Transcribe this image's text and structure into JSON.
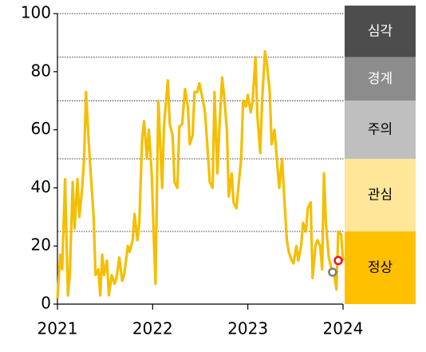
{
  "chart_data": {
    "type": "line",
    "x": [
      2021.0,
      2021.03,
      2021.05,
      2021.08,
      2021.11,
      2021.13,
      2021.16,
      2021.18,
      2021.21,
      2021.23,
      2021.26,
      2021.28,
      2021.3,
      2021.33,
      2021.35,
      2021.38,
      2021.4,
      2021.43,
      2021.45,
      2021.47,
      2021.49,
      2021.52,
      2021.54,
      2021.57,
      2021.6,
      2021.62,
      2021.65,
      2021.68,
      2021.7,
      2021.74,
      2021.76,
      2021.79,
      2021.81,
      2021.84,
      2021.86,
      2021.89,
      2021.91,
      2021.94,
      2021.96,
      2021.99,
      2022.01,
      2022.03,
      2022.06,
      2022.1,
      2022.12,
      2022.16,
      2022.18,
      2022.21,
      2022.23,
      2022.26,
      2022.28,
      2022.31,
      2022.34,
      2022.37,
      2022.39,
      2022.42,
      2022.44,
      2022.47,
      2022.49,
      2022.53,
      2022.55,
      2022.58,
      2022.6,
      2022.63,
      2022.65,
      2022.68,
      2022.7,
      2022.73,
      2022.75,
      2022.78,
      2022.8,
      2022.83,
      2022.85,
      2022.88,
      2022.9,
      2022.93,
      2022.95,
      2022.98,
      2023.0,
      2023.03,
      2023.05,
      2023.08,
      2023.1,
      2023.13,
      2023.15,
      2023.18,
      2023.2,
      2023.23,
      2023.25,
      2023.28,
      2023.31,
      2023.33,
      2023.36,
      2023.38,
      2023.41,
      2023.43,
      2023.46,
      2023.48,
      2023.51,
      2023.53,
      2023.56,
      2023.58,
      2023.61,
      2023.63,
      2023.66,
      2023.68,
      2023.71,
      2023.73,
      2023.76,
      2023.78,
      2023.8,
      2023.82,
      2023.85,
      2023.88,
      2023.9,
      2023.93,
      2023.95,
      2023.98,
      2024.0
    ],
    "series": [
      {
        "color": "#f5be00",
        "values": [
          2,
          17,
          12,
          43,
          3,
          10,
          42,
          26,
          43,
          30,
          40,
          50,
          73,
          55,
          45,
          30,
          10,
          12,
          3,
          17,
          10,
          15,
          3,
          10,
          7,
          9,
          16,
          8,
          10,
          20,
          18,
          22,
          31,
          22,
          28,
          57,
          63,
          50,
          60,
          45,
          25,
          7,
          70,
          40,
          62,
          77,
          62,
          58,
          42,
          40,
          61,
          62,
          74,
          68,
          55,
          58,
          73,
          73,
          76,
          70,
          66,
          52,
          42,
          40,
          73,
          45,
          60,
          78,
          72,
          60,
          37,
          45,
          35,
          33,
          40,
          50,
          70,
          68,
          72,
          66,
          70,
          85,
          65,
          52,
          70,
          87,
          83,
          73,
          55,
          60,
          48,
          40,
          50,
          38,
          22,
          18,
          15,
          14,
          20,
          15,
          20,
          28,
          25,
          33,
          35,
          9,
          20,
          22,
          20,
          12,
          45,
          28,
          16,
          12,
          12,
          5,
          25,
          24,
          15
        ]
      }
    ],
    "markers": [
      {
        "x": 2023.89,
        "y": 11,
        "color": "#7f7f7f"
      },
      {
        "x": 2023.95,
        "y": 15,
        "color": "#e8141b"
      }
    ],
    "bands": [
      {
        "label": "심각",
        "from": 85,
        "to": 100,
        "color": "#4d4d4d",
        "text_color": "#ffffff"
      },
      {
        "label": "경계",
        "from": 70,
        "to": 85,
        "color": "#8c8c8c",
        "text_color": "#ffffff"
      },
      {
        "label": "주의",
        "from": 50,
        "to": 70,
        "color": "#bfbfbf",
        "text_color": "#000000"
      },
      {
        "label": "관심",
        "from": 25,
        "to": 50,
        "color": "#ffe699",
        "text_color": "#000000"
      },
      {
        "label": "정상",
        "from": 0,
        "to": 25,
        "color": "#ffc000",
        "text_color": "#000000"
      }
    ],
    "xlim": [
      2021,
      2024
    ],
    "xticks": [
      2021,
      2022,
      2023,
      2024
    ],
    "ylim": [
      0,
      100
    ],
    "yticks": [
      0,
      20,
      40,
      60,
      80,
      100
    ]
  }
}
